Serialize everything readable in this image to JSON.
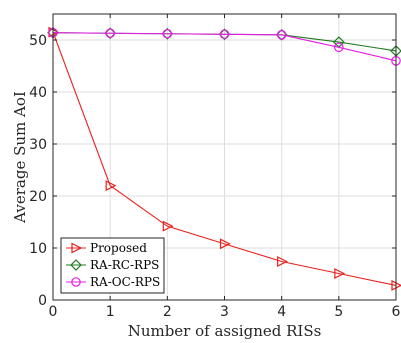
{
  "chart_data": {
    "type": "line",
    "xlabel": "Number of assigned RISs",
    "ylabel": "Average Sum AoI",
    "xlim": [
      0,
      6
    ],
    "ylim": [
      0,
      55
    ],
    "xticks": [
      0,
      1,
      2,
      3,
      4,
      5,
      6
    ],
    "yticks": [
      0,
      10,
      20,
      30,
      40,
      50
    ],
    "grid": true,
    "legend_position": "bottom-left",
    "series": [
      {
        "name": "Proposed",
        "color": "#e8211d",
        "marker": "triangle-right",
        "x": [
          0,
          1,
          2,
          3,
          4,
          5,
          6
        ],
        "values": [
          51.5,
          22.0,
          14.2,
          10.8,
          7.4,
          5.1,
          2.8
        ]
      },
      {
        "name": "RA-RC-RPS",
        "color": "#1f7a1f",
        "marker": "diamond",
        "x": [
          0,
          1,
          2,
          3,
          4,
          5,
          6
        ],
        "values": [
          51.4,
          51.3,
          51.2,
          51.1,
          51.0,
          49.6,
          47.9
        ]
      },
      {
        "name": "RA-OC-RPS",
        "color": "#e61ce6",
        "marker": "circle",
        "x": [
          0,
          1,
          2,
          3,
          4,
          5,
          6
        ],
        "values": [
          51.4,
          51.3,
          51.2,
          51.1,
          51.0,
          48.6,
          46.0
        ]
      }
    ]
  }
}
